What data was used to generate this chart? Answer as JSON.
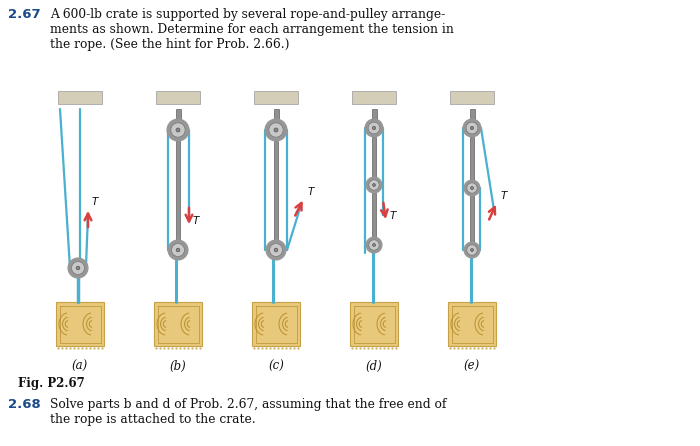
{
  "bg_color": "#ffffff",
  "title_number": "2.67",
  "title_text": "A 600-lb crate is supported by several rope-and-pulley arrange-\nments as shown. Determine for each arrangement the tension in\nthe rope. (See the hint for Prob. 2.66.)",
  "fig_label": "Fig. P2.67",
  "problem_2_68_number": "2.68",
  "problem_2_68_text": "Solve parts b and d of Prob. 2.67, assuming that the free end of\nthe rope is attached to the crate.",
  "sub_labels": [
    "(a)",
    "(b)",
    "(c)",
    "(d)",
    "(e)"
  ],
  "ceiling_color": "#d4cdb8",
  "rope_color": "#4ab0d0",
  "pulley_outer": "#969696",
  "pulley_mid": "#c8c8c8",
  "pulley_center": "#888888",
  "crate_fill": "#e8c87a",
  "crate_edge": "#c8a048",
  "crate_line": "#b89030",
  "arrow_color": "#d84040",
  "rod_color": "#909090",
  "rod_dark": "#606060",
  "text_color": "#1a1a1a",
  "number_color": "#1a4a8a"
}
